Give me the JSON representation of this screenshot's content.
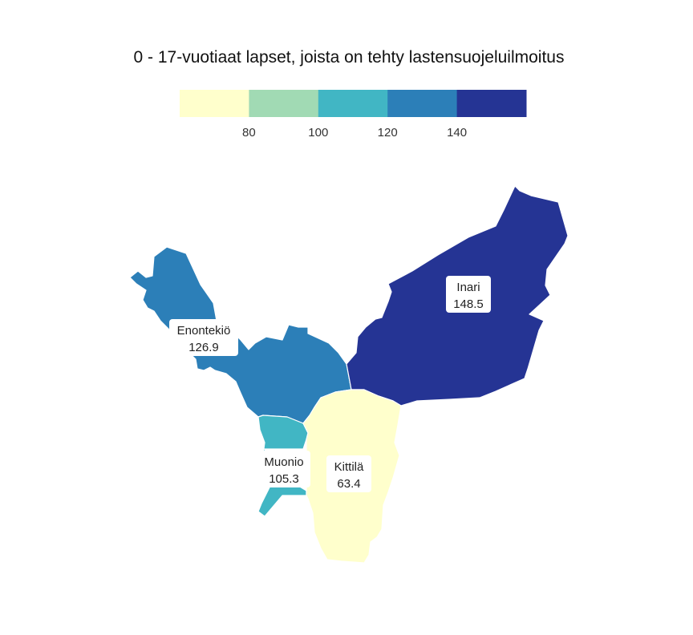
{
  "chart_data": {
    "type": "choropleth",
    "title": "0 - 17-vuotiaat lapset, joista on tehty lastensuojeluilmoitus",
    "legend": {
      "placement": "top-center",
      "colors": [
        "#ffffcc",
        "#a1dab4",
        "#41b6c4",
        "#2c7fb8",
        "#253494"
      ],
      "thresholds": [
        80,
        100,
        120,
        140
      ],
      "tick_labels": [
        "80",
        "100",
        "120",
        "140"
      ]
    },
    "regions": [
      {
        "name": "Enontekiö",
        "value": 126.9,
        "value_label": "126.9",
        "color": "#2c7fb8"
      },
      {
        "name": "Inari",
        "value": 148.5,
        "value_label": "148.5",
        "color": "#253494"
      },
      {
        "name": "Muonio",
        "value": 105.3,
        "value_label": "105.3",
        "color": "#41b6c4"
      },
      {
        "name": "Kittilä",
        "value": 63.4,
        "value_label": "63.4",
        "color": "#ffffcc"
      }
    ]
  }
}
